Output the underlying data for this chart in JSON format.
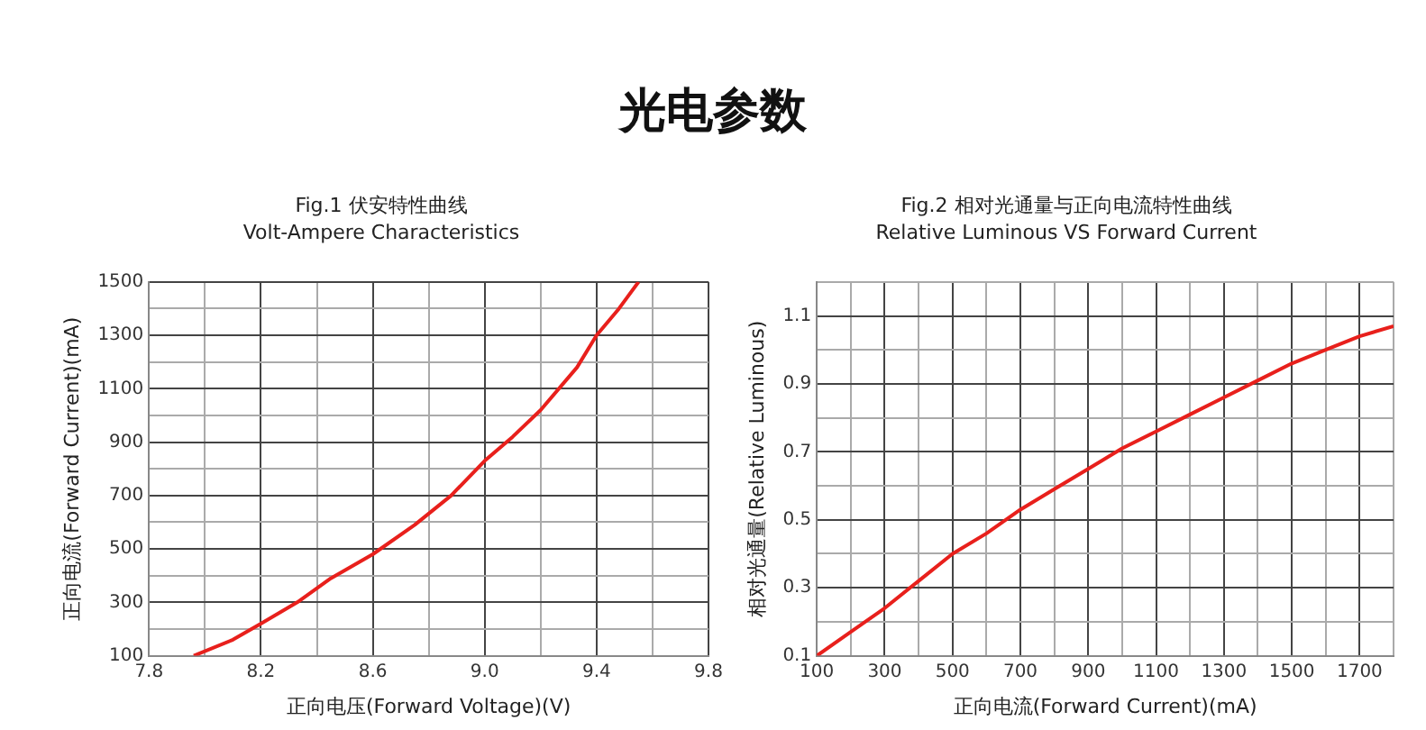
{
  "chart_data": [
    {
      "type": "line",
      "annotations": [
        "光电参数"
      ],
      "title": "Fig.1 伏安特性曲线",
      "subtitle": "Volt-Ampere Characteristics",
      "xlabel": "正向电压(Forward Voltage)(V)",
      "ylabel": "正向电流(Forward Current)(mA)",
      "x": [
        7.96,
        8.1,
        8.2,
        8.33,
        8.45,
        8.6,
        8.75,
        8.88,
        9.0,
        9.1,
        9.2,
        9.33,
        9.4,
        9.48,
        9.55
      ],
      "series": [
        {
          "color": "#e8201c",
          "values": [
            100,
            160,
            220,
            300,
            390,
            480,
            590,
            700,
            830,
            920,
            1020,
            1180,
            1300,
            1400,
            1500
          ]
        }
      ],
      "xlim": [
        7.8,
        9.8
      ],
      "xticks": [
        7.8,
        {
          "value": 8.0,
          "label": null
        },
        8.2,
        {
          "value": 8.4,
          "label": null
        },
        8.6,
        {
          "value": 8.8,
          "label": null
        },
        {
          "value": 9.0,
          "label": "9.0"
        },
        {
          "value": 9.2,
          "label": null
        },
        9.4,
        {
          "value": 9.6,
          "label": null
        },
        9.8
      ],
      "ylim": [
        100,
        1500
      ],
      "yticks": [
        100,
        {
          "value": 200,
          "label": null
        },
        300,
        {
          "value": 400,
          "label": null
        },
        500,
        {
          "value": 600,
          "label": null
        },
        700,
        {
          "value": 800,
          "label": null
        },
        900,
        {
          "value": 1000,
          "label": null
        },
        1100,
        {
          "value": 1200,
          "label": null
        },
        1300,
        {
          "value": 1400,
          "label": null
        },
        1500
      ],
      "grid": true,
      "legend": false,
      "marker": "none",
      "line_style": "solid"
    },
    {
      "type": "line",
      "title": "Fig.2 相对光通量与正向电流特性曲线",
      "subtitle": "Relative Luminous VS Forward Current",
      "xlabel": "正向电流(Forward Current)(mA)",
      "ylabel": "相对光通量(Relative Luminous)",
      "x": [
        100,
        200,
        300,
        400,
        500,
        600,
        700,
        800,
        900,
        1000,
        1100,
        1200,
        1300,
        1400,
        1500,
        1600,
        1700,
        1800
      ],
      "series": [
        {
          "color": "#e8201c",
          "values": [
            0.1,
            0.17,
            0.24,
            0.32,
            0.4,
            0.46,
            0.53,
            0.59,
            0.65,
            0.71,
            0.76,
            0.81,
            0.86,
            0.91,
            0.96,
            1.0,
            1.04,
            1.07
          ]
        }
      ],
      "xlim": [
        100,
        1800
      ],
      "xticks": [
        100,
        {
          "value": 200,
          "label": null
        },
        300,
        {
          "value": 400,
          "label": null
        },
        500,
        {
          "value": 600,
          "label": null
        },
        700,
        {
          "value": 800,
          "label": null
        },
        900,
        {
          "value": 1000,
          "label": null
        },
        1100,
        {
          "value": 1200,
          "label": null
        },
        1300,
        {
          "value": 1400,
          "label": null
        },
        1500,
        {
          "value": 1600,
          "label": null
        },
        1700,
        {
          "value": 1800,
          "label": null
        }
      ],
      "ylim": [
        0.1,
        1.2
      ],
      "yticks": [
        0.1,
        {
          "value": 0.2,
          "label": null
        },
        0.3,
        {
          "value": 0.4,
          "label": null
        },
        0.5,
        {
          "value": 0.6,
          "label": null
        },
        0.7,
        {
          "value": 0.8,
          "label": null
        },
        0.9,
        {
          "value": 1.0,
          "label": null
        },
        1.1,
        {
          "value": 1.2,
          "label": null
        }
      ],
      "grid": true,
      "legend": false,
      "marker": "none",
      "line_style": "solid"
    }
  ]
}
